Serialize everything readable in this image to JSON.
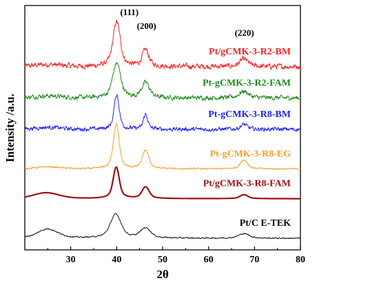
{
  "chart_data": {
    "type": "line",
    "xlabel": "2θ",
    "ylabel": "Intensity /a.u.",
    "xlim": [
      20,
      80
    ],
    "x_ticks": [
      30,
      40,
      50,
      60,
      70,
      80
    ],
    "y_scale": "arbitrary units (curves vertically offset, no y tick labels)",
    "grid": false,
    "legend": "labels placed at right of each curve",
    "peak_labels": [
      {
        "text": "(111)",
        "x": 40
      },
      {
        "text": "(200)",
        "x": 46.5
      },
      {
        "text": "(220)",
        "x": 67.8
      }
    ],
    "series": [
      {
        "name": "Pt/gCMK-3-R2-BM",
        "color": "#ff2020",
        "baseline": 5.55,
        "noise": 0.13,
        "peaks": [
          {
            "x": 40,
            "h": 1.35,
            "w": 1.0
          },
          {
            "x": 46.3,
            "h": 0.5,
            "w": 0.9
          },
          {
            "x": 67.7,
            "h": 0.22,
            "w": 1.2
          }
        ]
      },
      {
        "name": "Pt-gCMK-3-R2-FAM",
        "color": "#1a8c1a",
        "baseline": 4.6,
        "noise": 0.11,
        "peaks": [
          {
            "x": 40,
            "h": 1.05,
            "w": 1.1
          },
          {
            "x": 46.3,
            "h": 0.45,
            "w": 1.1
          },
          {
            "x": 67.7,
            "h": 0.2,
            "w": 1.3
          }
        ]
      },
      {
        "name": "Pt-gCMK-3-R8-BM",
        "color": "#2020ff",
        "baseline": 3.65,
        "noise": 0.1,
        "peaks": [
          {
            "x": 40,
            "h": 1.05,
            "w": 0.7
          },
          {
            "x": 46.3,
            "h": 0.45,
            "w": 0.6
          },
          {
            "x": 67.7,
            "h": 0.15,
            "w": 0.9
          }
        ]
      },
      {
        "name": "Pt-gCMK-3-R8-EG",
        "color": "#ff9a2a",
        "baseline": 2.45,
        "noise": 0.04,
        "peaks": [
          {
            "x": 39.9,
            "h": 1.35,
            "w": 0.8
          },
          {
            "x": 46.3,
            "h": 0.55,
            "w": 0.9
          },
          {
            "x": 67.7,
            "h": 0.28,
            "w": 1.0
          }
        ]
      },
      {
        "name": "Pt/gCMK-3-R8-FAM",
        "color": "#a01010",
        "baseline": 1.55,
        "noise": 0.0,
        "peaks": [
          {
            "x": 24.5,
            "h": 0.12,
            "w": 3.5
          },
          {
            "x": 39.9,
            "h": 0.95,
            "w": 0.85
          },
          {
            "x": 46.3,
            "h": 0.35,
            "w": 1.0
          },
          {
            "x": 67.7,
            "h": 0.12,
            "w": 1.1
          }
        ]
      },
      {
        "name": "Pt/C E-TEK",
        "color": "#111111",
        "baseline": 0.35,
        "noise": 0.03,
        "peaks": [
          {
            "x": 25,
            "h": 0.22,
            "w": 2.6
          },
          {
            "x": 39.8,
            "h": 0.72,
            "w": 1.5
          },
          {
            "x": 46.3,
            "h": 0.3,
            "w": 1.4
          },
          {
            "x": 67.7,
            "h": 0.14,
            "w": 1.5
          }
        ]
      }
    ]
  }
}
